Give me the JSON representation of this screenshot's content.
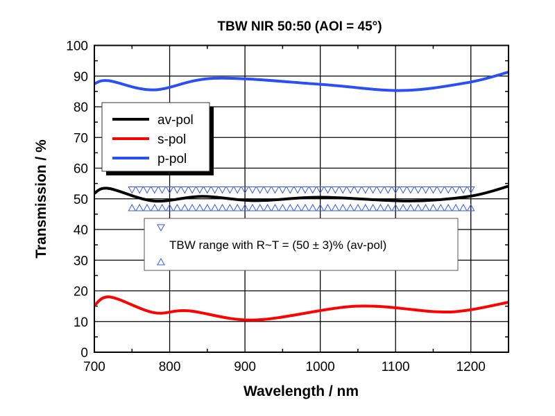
{
  "chart_data": {
    "type": "line",
    "title": "TBW NIR 50:50 (AOI = 45°)",
    "xlabel": "Wavelength / nm",
    "ylabel": "Transmission / %",
    "xlim": [
      700,
      1250
    ],
    "ylim": [
      0,
      100
    ],
    "xticks": [
      700,
      800,
      900,
      1000,
      1100,
      1200
    ],
    "yticks": [
      0,
      10,
      20,
      30,
      40,
      50,
      60,
      70,
      80,
      90,
      100
    ],
    "grid": true,
    "legend_position": "upper-left",
    "series": [
      {
        "name": "av-pol",
        "color": "#000000",
        "x": [
          700,
          719,
          779,
          843,
          913,
          1001,
          1118,
          1198,
          1250
        ],
        "y": [
          51.8,
          53.4,
          49.3,
          50.8,
          49.4,
          50.5,
          49.3,
          50.8,
          54.1
        ]
      },
      {
        "name": "s-pol",
        "color": "#ff0000",
        "x": [
          700,
          721,
          779,
          825,
          913,
          1047,
          1153,
          1196,
          1250
        ],
        "y": [
          15.2,
          18.0,
          12.9,
          13.5,
          10.5,
          15.0,
          13.2,
          13.7,
          16.3
        ]
      },
      {
        "name": "p-pol",
        "color": "#2a4ff5",
        "x": [
          700,
          719,
          779,
          860,
          1001,
          1107,
          1196,
          1250
        ],
        "y": [
          87.5,
          88.5,
          85.5,
          89.3,
          87.3,
          85.3,
          87.9,
          91.3
        ]
      }
    ],
    "tbw_range": {
      "label": "TBW range with R~T = (50 ± 3)% (av-pol)",
      "color": "#3355ee",
      "x_start": 750,
      "x_end": 1200,
      "step": 10,
      "upper": 53,
      "lower": 47
    }
  }
}
